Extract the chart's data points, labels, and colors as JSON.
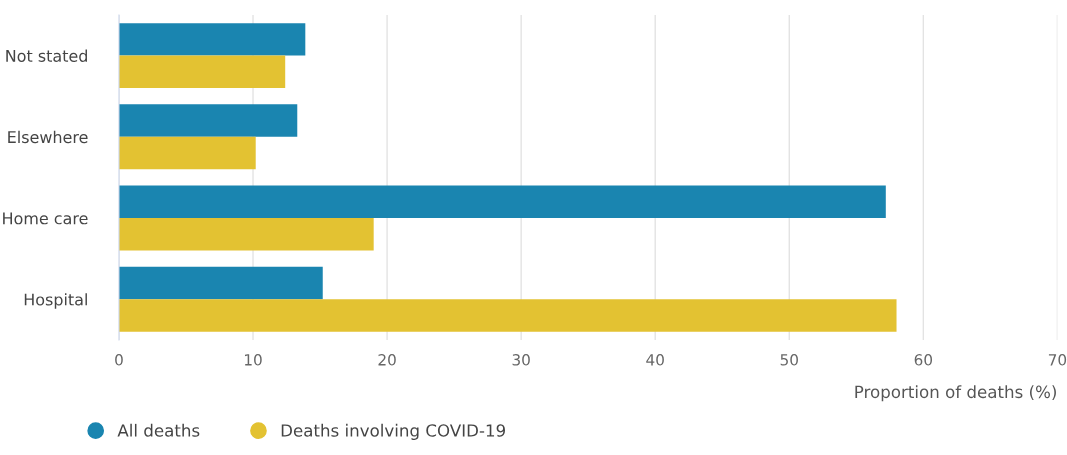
{
  "chart_data": {
    "type": "bar",
    "orientation": "horizontal",
    "categories": [
      "Not stated",
      "Elsewhere",
      "Home care",
      "Hospital"
    ],
    "series": [
      {
        "name": "All deaths",
        "color": "#1a85b0",
        "values": [
          13.9,
          13.3,
          57.2,
          15.2
        ]
      },
      {
        "name": "Deaths involving COVID-19",
        "color": "#e3c232",
        "values": [
          12.4,
          10.2,
          19.0,
          58.0
        ]
      }
    ],
    "xlabel": "Proportion of deaths (%)",
    "xlim": [
      0,
      70
    ],
    "xticks": [
      0,
      10,
      20,
      30,
      40,
      50,
      60,
      70
    ],
    "grid": "x",
    "legend": "bottom left"
  }
}
